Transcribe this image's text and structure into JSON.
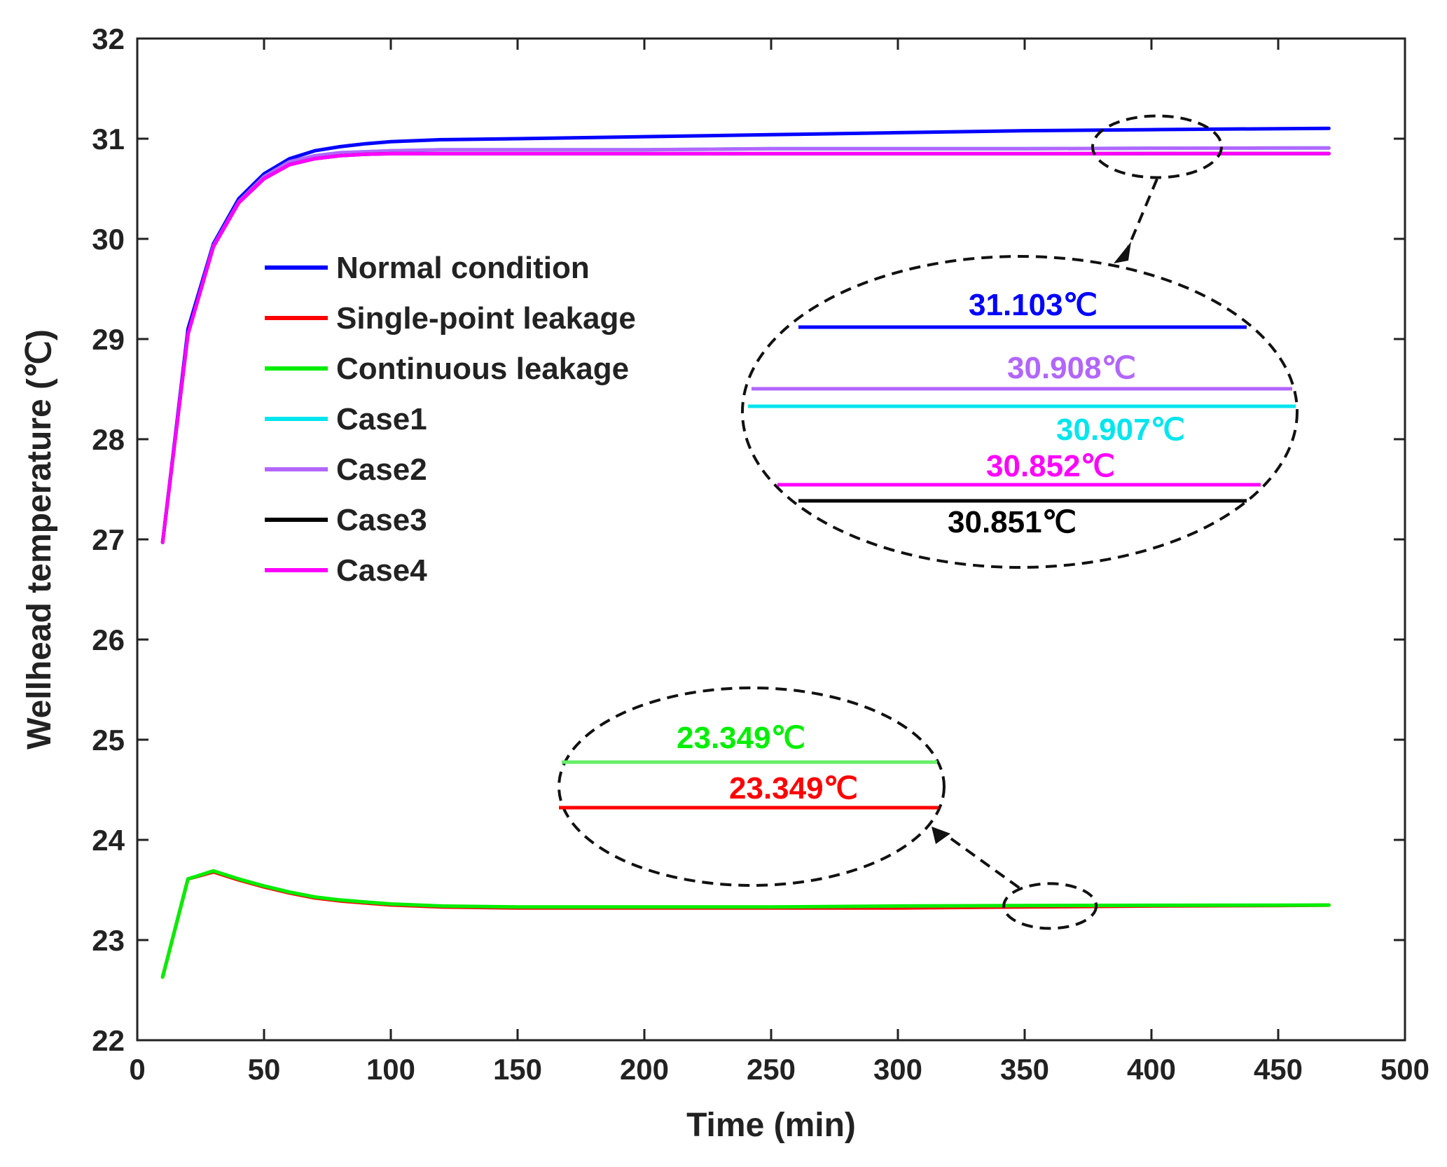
{
  "chart_data": {
    "type": "line",
    "title": "",
    "xlabel": "Time (min)",
    "ylabel": "Wellhead temperature (℃)",
    "xlim": [
      0,
      500
    ],
    "ylim": [
      22,
      32
    ],
    "xticks": [
      0,
      50,
      100,
      150,
      200,
      250,
      300,
      350,
      400,
      450,
      500
    ],
    "yticks": [
      22,
      23,
      24,
      25,
      26,
      27,
      28,
      29,
      30,
      31,
      32
    ],
    "grid": false,
    "legend_position": "upper-left",
    "x": [
      10,
      20,
      30,
      40,
      50,
      60,
      70,
      80,
      90,
      100,
      120,
      150,
      200,
      250,
      300,
      350,
      400,
      450,
      470
    ],
    "series": [
      {
        "name": "Normal condition",
        "color": "#0000ff",
        "values": [
          26.97,
          29.1,
          29.95,
          30.4,
          30.65,
          30.8,
          30.88,
          30.92,
          30.95,
          30.97,
          30.99,
          31.0,
          31.02,
          31.04,
          31.06,
          31.08,
          31.09,
          31.1,
          31.103
        ]
      },
      {
        "name": "Single-point leakage",
        "color": "#ff0000",
        "values": [
          22.63,
          23.61,
          23.68,
          23.6,
          23.53,
          23.47,
          23.42,
          23.39,
          23.37,
          23.35,
          23.33,
          23.32,
          23.32,
          23.32,
          23.32,
          23.33,
          23.34,
          23.345,
          23.349
        ]
      },
      {
        "name": "Continuous leakage",
        "color": "#00ee00",
        "values": [
          22.63,
          23.61,
          23.69,
          23.61,
          23.54,
          23.48,
          23.43,
          23.4,
          23.38,
          23.36,
          23.34,
          23.33,
          23.33,
          23.33,
          23.34,
          23.345,
          23.347,
          23.348,
          23.349
        ]
      },
      {
        "name": "Case1",
        "color": "#00e5ee",
        "values": [
          26.97,
          29.05,
          29.93,
          30.37,
          30.62,
          30.77,
          30.83,
          30.86,
          30.87,
          30.88,
          30.89,
          30.89,
          30.89,
          30.9,
          30.9,
          30.9,
          30.905,
          30.906,
          30.907
        ]
      },
      {
        "name": "Case2",
        "color": "#b266ff",
        "values": [
          26.97,
          29.05,
          29.93,
          30.37,
          30.62,
          30.77,
          30.83,
          30.86,
          30.87,
          30.88,
          30.89,
          30.89,
          30.89,
          30.9,
          30.9,
          30.9,
          30.905,
          30.907,
          30.908
        ]
      },
      {
        "name": "Case3",
        "color": "#000000",
        "values": [
          26.97,
          29.05,
          29.92,
          30.36,
          30.6,
          30.74,
          30.8,
          30.83,
          30.845,
          30.85,
          30.85,
          30.85,
          30.85,
          30.85,
          30.85,
          30.85,
          30.851,
          30.851,
          30.851
        ]
      },
      {
        "name": "Case4",
        "color": "#ff00ff",
        "values": [
          26.97,
          29.05,
          29.92,
          30.36,
          30.6,
          30.74,
          30.8,
          30.83,
          30.845,
          30.85,
          30.85,
          30.85,
          30.85,
          30.85,
          30.85,
          30.85,
          30.851,
          30.852,
          30.852
        ]
      }
    ],
    "annotations": {
      "upper_inset": {
        "center": [
          400,
          30.92
        ],
        "callouts": [
          {
            "label": "31.103℃",
            "color": "#0000ff"
          },
          {
            "label": "30.908℃",
            "color": "#b266ff"
          },
          {
            "label": "30.907℃",
            "color": "#00e5ee"
          },
          {
            "label": "30.852℃",
            "color": "#ff00ff"
          },
          {
            "label": "30.851℃",
            "color": "#000000"
          }
        ]
      },
      "lower_inset": {
        "center": [
          360,
          23.34
        ],
        "callouts": [
          {
            "label": "23.349℃",
            "color": "#00ee00"
          },
          {
            "label": "23.349℃",
            "color": "#ff0000"
          }
        ]
      }
    }
  }
}
